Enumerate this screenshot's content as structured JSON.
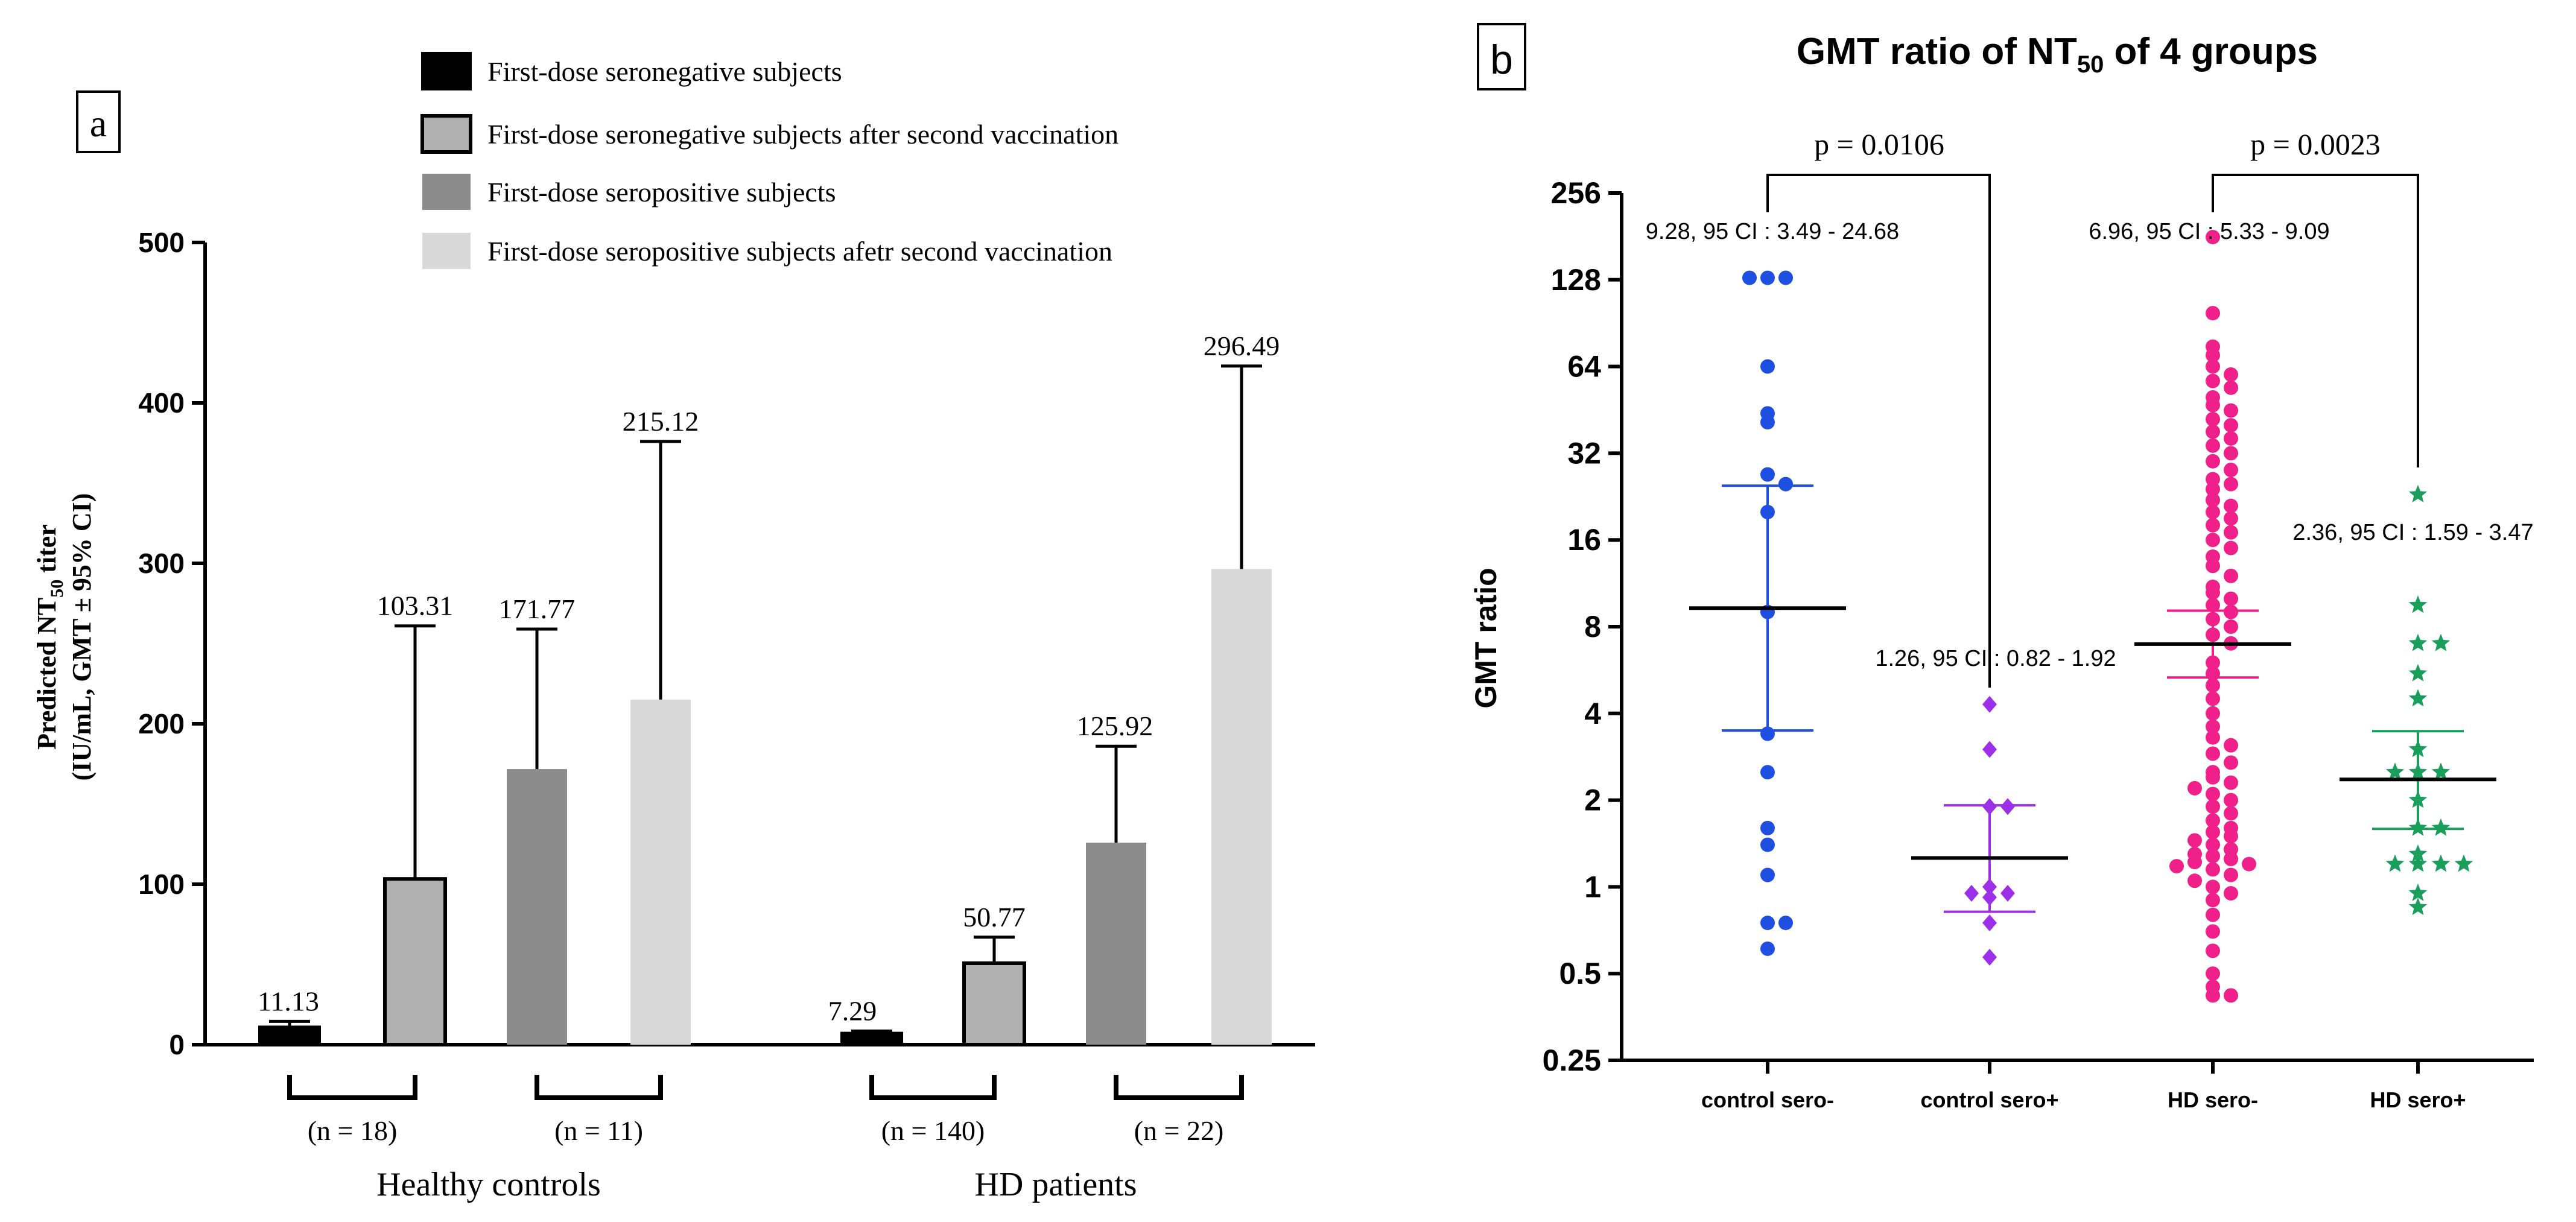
{
  "chart_data": [
    {
      "type": "bar",
      "panel_label": "a",
      "ylabel_line1": "Predicted NT",
      "ylabel_sub": "50",
      "ylabel_line1_end": " titer",
      "ylabel_line2": "(IU/mL, GMT ± 95% CI)",
      "ylim": [
        0,
        500
      ],
      "yticks": [
        "0",
        "100",
        "200",
        "300",
        "400",
        "500"
      ],
      "groups": [
        "Healthy controls",
        "HD patients"
      ],
      "legend_position": "top",
      "series": [
        {
          "name": "First-dose seronegative subjects",
          "color": "#000000",
          "values": [
            11.13,
            7.29
          ],
          "ci_upper": [
            14.5,
            8.5
          ],
          "labels": [
            "11.13",
            "7.29"
          ]
        },
        {
          "name": "First-dose seronegative subjects after  second vaccination",
          "color": "#b0b0b0",
          "values": [
            103.31,
            50.77
          ],
          "ci_upper": [
            261,
            67
          ],
          "labels": [
            "103.31",
            "50.77"
          ]
        },
        {
          "name": "First-dose seropositive subjects",
          "color": "#8c8c8c",
          "values": [
            171.77,
            125.92
          ],
          "ci_upper": [
            259,
            186
          ],
          "labels": [
            "171.77",
            "125.92"
          ]
        },
        {
          "name": "First-dose seropositive subjects afetr second vaccination",
          "color": "#d9d9d9",
          "values": [
            215.12,
            296.49
          ],
          "ci_upper": [
            376,
            423
          ],
          "labels": [
            "215.12",
            "296.49"
          ]
        }
      ],
      "n_labels": [
        "(n = 18)",
        "(n = 11)",
        "(n = 140)",
        "(n = 22)"
      ]
    },
    {
      "type": "scatter",
      "panel_label": "b",
      "title_main": "GMT ratio of NT",
      "title_sub": "50",
      "title_end": " of 4 groups",
      "ylabel": "GMT ratio",
      "yscale": "log2",
      "ylim": [
        0.25,
        256
      ],
      "yticks": [
        "0.25",
        "0.5",
        "1",
        "2",
        "4",
        "8",
        "16",
        "32",
        "64",
        "128",
        "256"
      ],
      "categories": [
        "control sero-",
        "control sero+",
        "HD sero-",
        "HD sero+"
      ],
      "p_values": [
        "p = 0.0106",
        "p = 0.0023"
      ],
      "groups": [
        {
          "name": "control sero-",
          "color": "#1f4fe0",
          "marker": "circle",
          "gmt": 9.28,
          "ci": [
            3.49,
            24.68
          ],
          "annotation": "9.28, 95 CI : 3.49 - 24.68",
          "points": [
            130,
            130,
            130,
            64,
            44,
            41,
            27,
            25,
            20,
            9,
            3.4,
            2.5,
            1.6,
            1.4,
            1.1,
            0.75,
            0.75,
            0.61
          ]
        },
        {
          "name": "control sero+",
          "color": "#9b30e8",
          "marker": "diamond",
          "gmt": 1.26,
          "ci": [
            0.82,
            1.92
          ],
          "annotation": "1.26, 95 CI : 0.82 - 1.92",
          "points": [
            4.3,
            3.0,
            1.9,
            1.9,
            1.0,
            0.95,
            0.95,
            0.92,
            0.75,
            0.57
          ]
        },
        {
          "name": "HD sero-",
          "color": "#f0208a",
          "marker": "circle",
          "gmt": 6.96,
          "ci": [
            5.33,
            9.09
          ],
          "annotation": "6.96, 95 CI : 5.33 - 9.09",
          "points": [
            180,
            98,
            75,
            70,
            64,
            60,
            57,
            54,
            50,
            47,
            45,
            42,
            40,
            38,
            36,
            34,
            32,
            30,
            28,
            26,
            25,
            24,
            22,
            21,
            20,
            19,
            18,
            17,
            16,
            15,
            14,
            13,
            12,
            11,
            10.5,
            10,
            9.5,
            9,
            8.5,
            8,
            7.5,
            7,
            6,
            5.5,
            5,
            4.5,
            4,
            3.6,
            3.3,
            3.1,
            2.9,
            2.7,
            2.5,
            2.4,
            2.3,
            2.2,
            2.1,
            2.0,
            1.9,
            1.8,
            1.7,
            1.6,
            1.55,
            1.5,
            1.45,
            1.4,
            1.35,
            1.3,
            1.28,
            1.25,
            1.22,
            1.2,
            1.18,
            1.15,
            1.1,
            1.05,
            1.0,
            0.95,
            0.9,
            0.8,
            0.7,
            0.6,
            0.5,
            0.45,
            0.42,
            0.42
          ]
        },
        {
          "name": "HD sero+",
          "color": "#1a9e5c",
          "marker": "star",
          "gmt": 2.36,
          "ci": [
            1.59,
            3.47
          ],
          "annotation": "2.36, 95 CI : 1.59 - 3.47",
          "points": [
            23,
            9.5,
            7,
            7,
            5.5,
            4.5,
            3.0,
            2.5,
            2.5,
            2.5,
            2.0,
            1.6,
            1.6,
            1.3,
            1.2,
            1.2,
            1.2,
            1.2,
            0.95,
            0.85
          ]
        }
      ]
    }
  ]
}
